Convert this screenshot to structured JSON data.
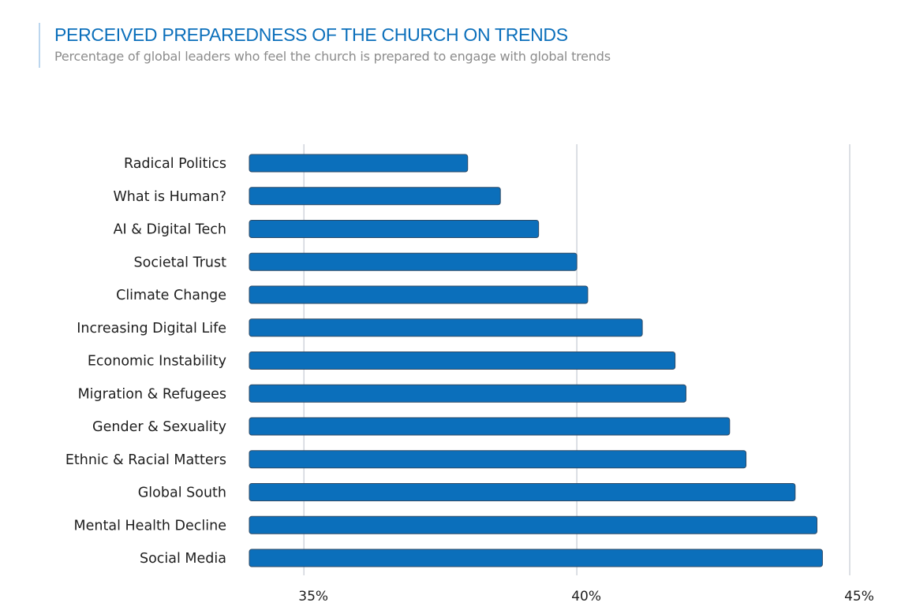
{
  "title": "PERCEIVED PREPAREDNESS OF THE CHURCH ON TRENDS",
  "subtitle": "Percentage of global leaders who feel the church is prepared to engage with global trends",
  "chart_data": {
    "type": "bar",
    "orientation": "horizontal",
    "title": "PERCEIVED PREPAREDNESS OF THE CHURCH ON TRENDS",
    "subtitle": "Percentage of global leaders who feel the church is prepared to engage with global trends",
    "categories": [
      "Radical Politics",
      "What is Human?",
      "AI & Digital Tech",
      "Societal Trust",
      "Climate Change",
      "Increasing Digital Life",
      "Economic Instability",
      "Migration & Refugees",
      "Gender & Sexuality",
      "Ethnic & Racial Matters",
      "Global South",
      "Mental Health Decline",
      "Social Media"
    ],
    "values": [
      38.0,
      38.6,
      39.3,
      40.0,
      40.2,
      41.2,
      41.8,
      42.0,
      42.8,
      43.1,
      44.0,
      44.4,
      44.5
    ],
    "xlim": [
      34,
      45
    ],
    "xticks": [
      35,
      40,
      45
    ],
    "xtick_labels": [
      "35%",
      "40%",
      "45%"
    ],
    "xlabel": "",
    "ylabel": "",
    "grid": true,
    "bar_color": "#0b6fbb"
  }
}
